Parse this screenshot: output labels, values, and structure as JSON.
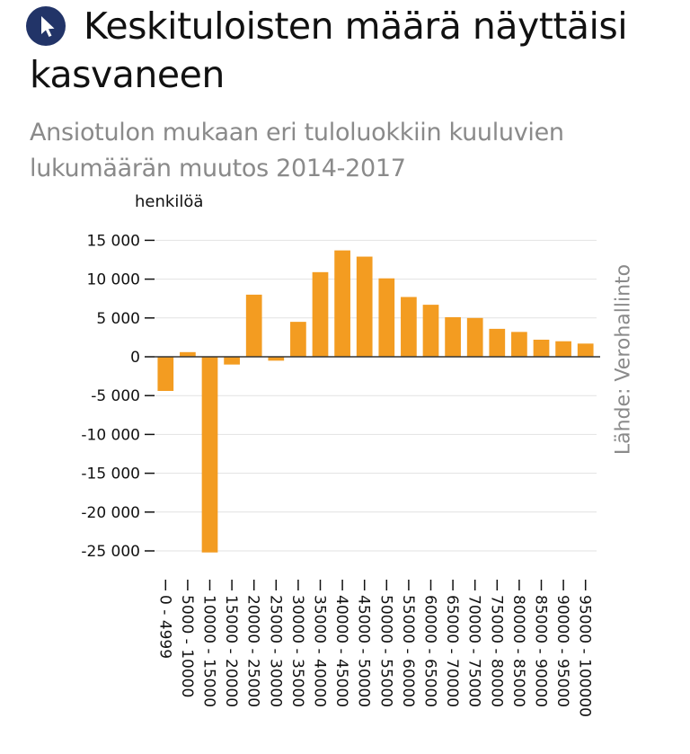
{
  "header": {
    "title": "Keskituloisten määrä näyttäisi kasvaneen",
    "subtitle": "Ansiotulon mukaan eri tuloluokkiin kuuluvien lukumäärän muutos 2014-2017",
    "icon": "cursor-arrow-icon",
    "badge_color": "#223468"
  },
  "source": "Lähde: Verohallinto",
  "chart_data": {
    "type": "bar",
    "title": "Keskituloisten määrä näyttäisi kasvaneen",
    "subtitle": "Ansiotulon mukaan eri tuloluokkiin kuuluvien lukumäärän muutos 2014-2017",
    "ylabel": "henkilöä",
    "xlabel": "",
    "ylim": [
      -27000,
      15000
    ],
    "yticks": [
      15000,
      10000,
      5000,
      0,
      -5000,
      -10000,
      -15000,
      -20000,
      -25000
    ],
    "ytick_labels": [
      "15 000",
      "10 000",
      "5 000",
      "0",
      "-5 000",
      "-10 000",
      "-15 000",
      "-20 000",
      "-25 000"
    ],
    "grid": true,
    "bar_color": "#f39c21",
    "categories": [
      "0 - 4999",
      "5000 - 10000",
      "10000 - 15000",
      "15000 - 20000",
      "20000 - 25000",
      "25000 - 30000",
      "30000 - 35000",
      "35000 - 40000",
      "40000 - 45000",
      "45000 - 50000",
      "50000 - 55000",
      "55000 - 60000",
      "60000 - 65000",
      "65000 - 70000",
      "70000 - 75000",
      "75000 - 80000",
      "80000 - 85000",
      "85000 - 90000",
      "90000 - 95000",
      "95000 - 100000"
    ],
    "values": [
      -4400,
      600,
      -25200,
      -1000,
      8000,
      -500,
      4500,
      10900,
      13700,
      12900,
      10100,
      7700,
      6700,
      5100,
      5000,
      3600,
      3200,
      2200,
      2000,
      1700
    ],
    "source": "Lähde: Verohallinto"
  }
}
